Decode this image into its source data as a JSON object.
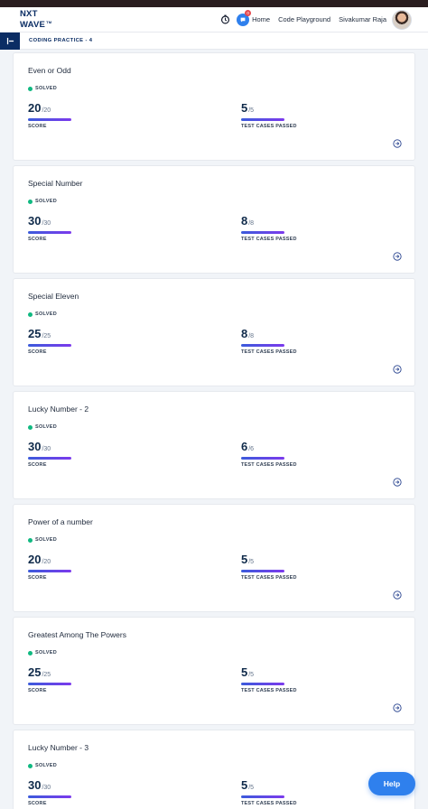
{
  "brand": {
    "line1": "NXT",
    "line2": "WAVE",
    "tm": "TM"
  },
  "nav": {
    "badge_count": "0",
    "home": "Home",
    "code_playground": "Code Playground",
    "user_name": "Sivakumar Raja"
  },
  "breadcrumb": "CODING PRACTICE - 4",
  "labels": {
    "solved": "SOLVED",
    "score": "SCORE",
    "test_cases": "TEST CASES PASSED"
  },
  "problems": [
    {
      "title": "Even or Odd",
      "score": "20",
      "score_max": "/20",
      "tests": "5",
      "tests_max": "/5"
    },
    {
      "title": "Special Number",
      "score": "30",
      "score_max": "/30",
      "tests": "8",
      "tests_max": "/8"
    },
    {
      "title": "Special Eleven",
      "score": "25",
      "score_max": "/25",
      "tests": "8",
      "tests_max": "/8"
    },
    {
      "title": "Lucky Number - 2",
      "score": "30",
      "score_max": "/30",
      "tests": "6",
      "tests_max": "/6"
    },
    {
      "title": "Power of a number",
      "score": "20",
      "score_max": "/20",
      "tests": "5",
      "tests_max": "/5"
    },
    {
      "title": "Greatest Among The Powers",
      "score": "25",
      "score_max": "/25",
      "tests": "5",
      "tests_max": "/5"
    },
    {
      "title": "Lucky Number - 3",
      "score": "30",
      "score_max": "/30",
      "tests": "5",
      "tests_max": "/5"
    }
  ],
  "help": "Help",
  "colors": {
    "brand_navy": "#0b2d64",
    "accent_blue": "#2f80ed",
    "solved_green": "#10b981"
  }
}
